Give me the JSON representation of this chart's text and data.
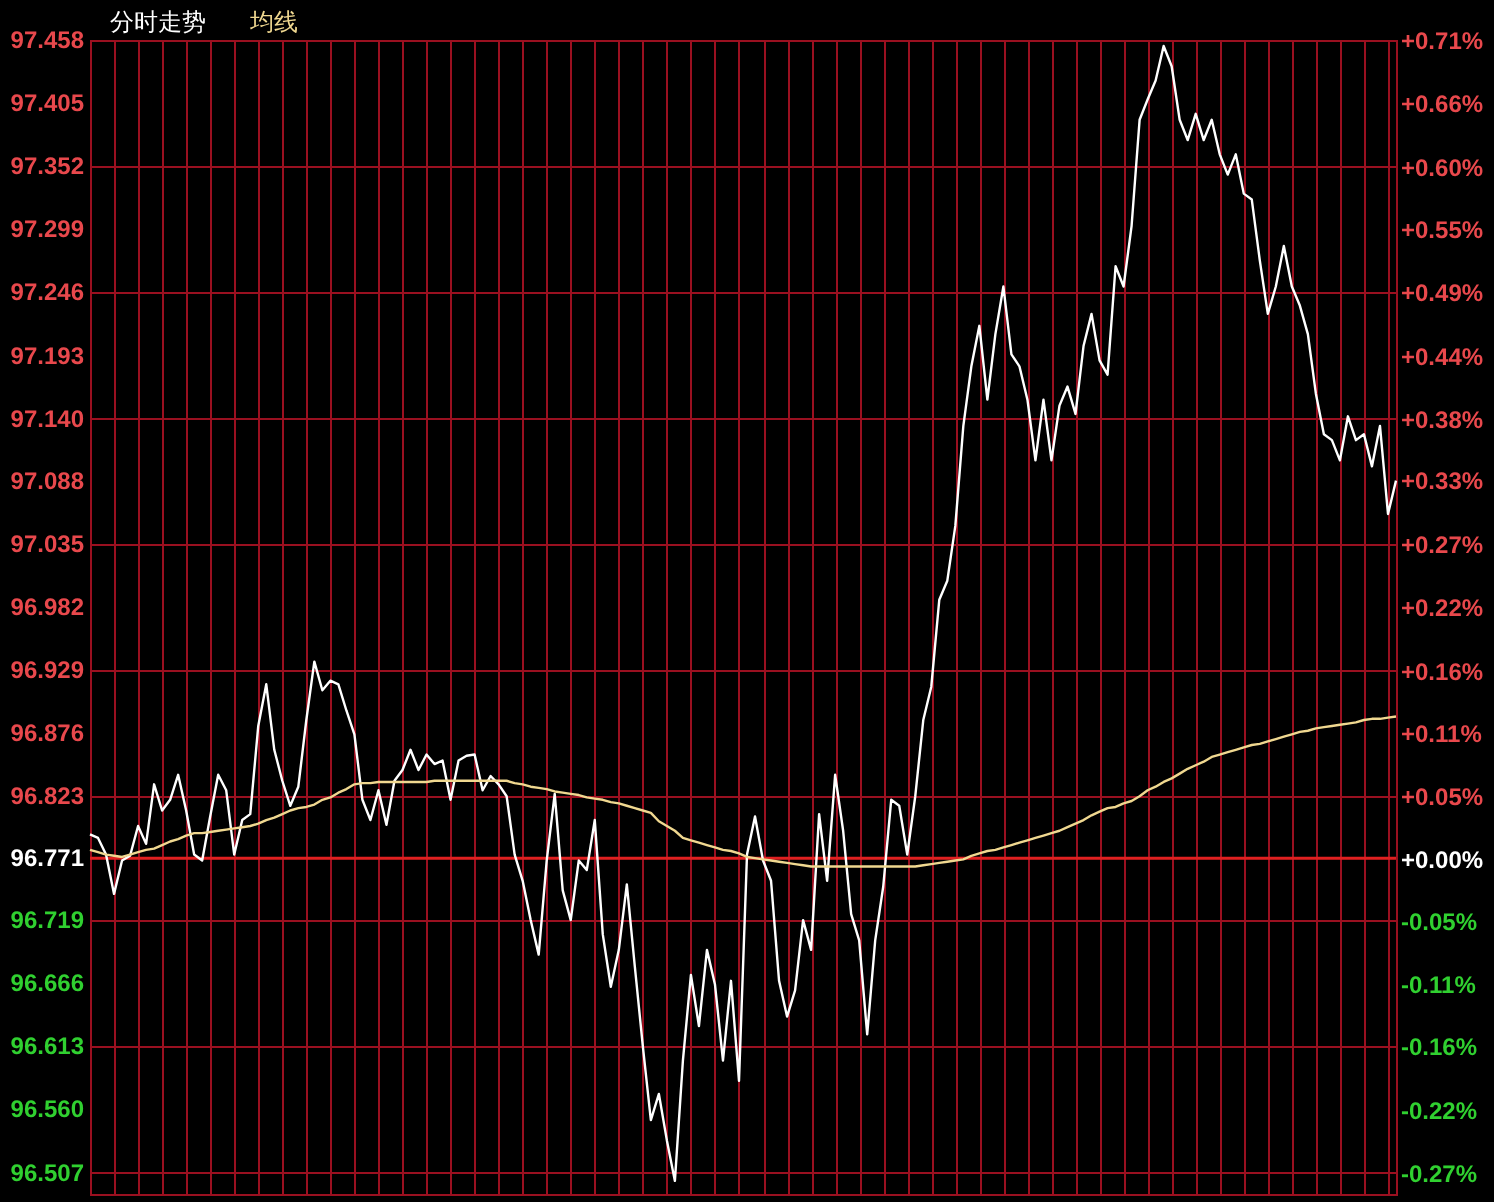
{
  "chart_data": {
    "type": "line",
    "categories": [
      null,
      null,
      null,
      null,
      null,
      null,
      null,
      null,
      null,
      null,
      null,
      null,
      null,
      null,
      null,
      null,
      null,
      null,
      null,
      null,
      null,
      null,
      null,
      null,
      null,
      null,
      null,
      null,
      null,
      null,
      null,
      null,
      null,
      null,
      null,
      null,
      null,
      null,
      null,
      null,
      null,
      null,
      null,
      null,
      null,
      null,
      null,
      null,
      null,
      null,
      null,
      null,
      null,
      null,
      null,
      null,
      null,
      null,
      null,
      null,
      null,
      null,
      null,
      null,
      null,
      null,
      null,
      null,
      null,
      null,
      null,
      null,
      null,
      null,
      null,
      null,
      null,
      null,
      null,
      null,
      null,
      null,
      null,
      null,
      null,
      null,
      null,
      null,
      null,
      null,
      null,
      null,
      null,
      null,
      null,
      null,
      null,
      null,
      null,
      null,
      null,
      null,
      null,
      null,
      null,
      null,
      null,
      null,
      null,
      null,
      null,
      null,
      null,
      null,
      null,
      null,
      null,
      null,
      null,
      null,
      null,
      null,
      null,
      null,
      null,
      null,
      null,
      null,
      null,
      null,
      null,
      null,
      null,
      null,
      null,
      null,
      null,
      null,
      null,
      null,
      null,
      null,
      null,
      null,
      null,
      null,
      null,
      null,
      null,
      null,
      null,
      null,
      null,
      null,
      null,
      null,
      null,
      null,
      null,
      null,
      null,
      null,
      null,
      null
    ],
    "ylim": [
      96.489,
      97.458
    ],
    "yticks": [
      96.507,
      {
        "value": 96.56,
        "label": "96.560"
      },
      96.613,
      96.666,
      96.719,
      96.771,
      96.823,
      96.876,
      96.929,
      96.982,
      97.035,
      97.088,
      {
        "value": 97.14,
        "label": "97.140"
      },
      97.193,
      97.246,
      97.299,
      97.352,
      97.405,
      97.458
    ],
    "y2lim": [
      -0.291,
      0.71
    ],
    "y2ticks": [
      {
        "value": -0.273,
        "label": "-0.27%"
      },
      {
        "value": -0.218,
        "label": "-0.22%"
      },
      {
        "value": -0.163,
        "label": "-0.16%"
      },
      {
        "value": -0.109,
        "label": "-0.11%"
      },
      {
        "value": -0.054,
        "label": "-0.05%"
      },
      {
        "value": 0,
        "label": "+0.00%"
      },
      {
        "value": 0.054,
        "label": "+0.05%"
      },
      {
        "value": 0.109,
        "label": "+0.11%"
      },
      {
        "value": 0.163,
        "label": "+0.16%"
      },
      {
        "value": 0.218,
        "label": "+0.22%"
      },
      {
        "value": 0.273,
        "label": "+0.27%"
      },
      {
        "value": 0.328,
        "label": "+0.33%"
      },
      {
        "value": 0.381,
        "label": "+0.38%"
      },
      {
        "value": 0.436,
        "label": "+0.44%"
      },
      {
        "value": 0.491,
        "label": "+0.49%"
      },
      {
        "value": 0.546,
        "label": "+0.55%"
      },
      {
        "value": 0.6,
        "label": "+0.60%"
      },
      {
        "value": 0.655,
        "label": "+0.66%"
      },
      {
        "value": 0.71,
        "label": "+0.71%"
      }
    ],
    "grid": true,
    "ref_lines": [
      {
        "axis": "y",
        "value": 96.771,
        "color": "#e02020"
      }
    ],
    "series": [
      {
        "name": "分时走势",
        "color": "#ffffff",
        "values": [
          96.791,
          96.788,
          96.774,
          96.741,
          96.769,
          96.773,
          96.798,
          96.783,
          96.833,
          96.811,
          96.82,
          96.841,
          96.811,
          96.774,
          96.769,
          96.806,
          96.841,
          96.828,
          96.774,
          96.803,
          96.808,
          96.882,
          96.917,
          96.862,
          96.836,
          96.815,
          96.831,
          96.887,
          96.936,
          96.912,
          96.92,
          96.917,
          96.895,
          96.875,
          96.82,
          96.803,
          96.828,
          96.799,
          96.836,
          96.845,
          96.862,
          96.845,
          96.858,
          96.85,
          96.853,
          96.82,
          96.853,
          96.857,
          96.858,
          96.828,
          96.84,
          96.833,
          96.823,
          96.774,
          96.752,
          96.719,
          96.69,
          96.769,
          96.825,
          96.744,
          96.719,
          96.769,
          96.761,
          96.803,
          96.707,
          96.663,
          96.694,
          96.749,
          96.68,
          96.613,
          96.551,
          96.573,
          96.534,
          96.5,
          96.601,
          96.673,
          96.63,
          96.694,
          96.665,
          96.601,
          96.668,
          96.584,
          96.774,
          96.806,
          96.769,
          96.752,
          96.668,
          96.638,
          96.66,
          96.719,
          96.694,
          96.808,
          96.752,
          96.841,
          96.794,
          96.724,
          96.702,
          96.623,
          96.702,
          96.747,
          96.82,
          96.815,
          96.774,
          96.823,
          96.887,
          96.915,
          96.988,
          97.004,
          97.05,
          97.134,
          97.184,
          97.218,
          97.156,
          97.211,
          97.251,
          97.194,
          97.184,
          97.156,
          97.105,
          97.156,
          97.105,
          97.151,
          97.167,
          97.144,
          97.201,
          97.228,
          97.189,
          97.177,
          97.268,
          97.251,
          97.302,
          97.391,
          97.408,
          97.424,
          97.453,
          97.436,
          97.391,
          97.374,
          97.396,
          97.374,
          97.391,
          97.362,
          97.345,
          97.362,
          97.329,
          97.324,
          97.273,
          97.228,
          97.251,
          97.285,
          97.251,
          97.235,
          97.211,
          97.161,
          97.127,
          97.122,
          97.105,
          97.142,
          97.122,
          97.127,
          97.1,
          97.134,
          97.06,
          97.088
        ]
      },
      {
        "name": "均线",
        "color": "#f0d890",
        "values": [
          96.778,
          96.776,
          96.774,
          96.773,
          96.772,
          96.774,
          96.776,
          96.778,
          96.779,
          96.782,
          96.785,
          96.787,
          96.79,
          96.792,
          96.792,
          96.793,
          96.794,
          96.795,
          96.796,
          96.797,
          96.798,
          96.8,
          96.803,
          96.805,
          96.808,
          96.811,
          96.813,
          96.814,
          96.816,
          96.82,
          96.822,
          96.826,
          96.829,
          96.833,
          96.834,
          96.834,
          96.835,
          96.835,
          96.835,
          96.835,
          96.835,
          96.835,
          96.835,
          96.836,
          96.836,
          96.836,
          96.836,
          96.836,
          96.836,
          96.836,
          96.836,
          96.836,
          96.836,
          96.834,
          96.833,
          96.831,
          96.83,
          96.829,
          96.827,
          96.826,
          96.825,
          96.824,
          96.822,
          96.821,
          96.82,
          96.818,
          96.817,
          96.815,
          96.813,
          96.811,
          96.809,
          96.802,
          96.798,
          96.794,
          96.788,
          96.786,
          96.784,
          96.782,
          96.78,
          96.778,
          96.777,
          96.775,
          96.772,
          96.771,
          96.77,
          96.769,
          96.768,
          96.767,
          96.766,
          96.765,
          96.764,
          96.764,
          96.764,
          96.764,
          96.764,
          96.764,
          96.764,
          96.764,
          96.764,
          96.764,
          96.764,
          96.764,
          96.764,
          96.764,
          96.765,
          96.766,
          96.767,
          96.768,
          96.769,
          96.77,
          96.773,
          96.775,
          96.777,
          96.778,
          96.78,
          96.782,
          96.784,
          96.786,
          96.788,
          96.79,
          96.792,
          96.794,
          96.797,
          96.8,
          96.803,
          96.807,
          96.81,
          96.813,
          96.814,
          96.817,
          96.819,
          96.823,
          96.828,
          96.831,
          96.835,
          96.838,
          96.842,
          96.846,
          96.849,
          96.852,
          96.856,
          96.858,
          96.86,
          96.862,
          96.864,
          96.866,
          96.867,
          96.869,
          96.871,
          96.873,
          96.875,
          96.877,
          96.878,
          96.88,
          96.881,
          96.882,
          96.883,
          96.884,
          96.885,
          96.887,
          96.888,
          96.888,
          96.889,
          96.89
        ]
      }
    ]
  }
}
